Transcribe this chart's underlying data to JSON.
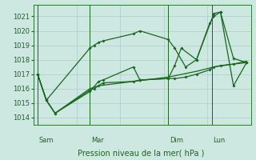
{
  "xlabel": "Pression niveau de la mer( hPa )",
  "background_color": "#cce8e0",
  "grid_color": "#aacccc",
  "line_color": "#1a6620",
  "ylim": [
    1013.5,
    1021.8
  ],
  "yticks": [
    1014,
    1015,
    1016,
    1017,
    1018,
    1019,
    1020,
    1021
  ],
  "day_labels": [
    "Sam",
    "Mar",
    "Dim",
    "Lun"
  ],
  "day_positions": [
    0.02,
    0.26,
    0.62,
    0.82
  ],
  "xmin": 0.0,
  "xmax": 1.0,
  "series1_x": [
    0.02,
    0.06,
    0.26,
    0.28,
    0.3,
    0.32,
    0.46,
    0.49,
    0.62,
    0.65,
    0.7,
    0.75,
    0.81,
    0.83,
    0.86,
    0.92,
    0.98
  ],
  "series1_y": [
    1017.0,
    1015.2,
    1018.8,
    1019.0,
    1019.2,
    1019.3,
    1019.8,
    1020.0,
    1019.4,
    1018.8,
    1017.5,
    1018.0,
    1020.5,
    1021.0,
    1021.3,
    1018.1,
    1017.8
  ],
  "series2_x": [
    0.02,
    0.06,
    0.1,
    0.26,
    0.28,
    0.3,
    0.32,
    0.46,
    0.49,
    0.62,
    0.65,
    0.7,
    0.75,
    0.81,
    0.83,
    0.86,
    0.92,
    0.98
  ],
  "series2_y": [
    1017.0,
    1015.2,
    1014.3,
    1015.9,
    1016.0,
    1016.2,
    1016.4,
    1016.5,
    1016.6,
    1016.7,
    1016.7,
    1016.8,
    1017.0,
    1017.3,
    1017.5,
    1017.6,
    1017.7,
    1017.8
  ],
  "series3_x": [
    0.02,
    0.06,
    0.1,
    0.26,
    0.3,
    0.32,
    0.46,
    0.49,
    0.62,
    0.65,
    0.68,
    0.75,
    0.83,
    0.86,
    0.92,
    0.98
  ],
  "series3_y": [
    1017.0,
    1015.2,
    1014.3,
    1015.8,
    1016.5,
    1016.6,
    1017.5,
    1016.6,
    1016.7,
    1017.6,
    1018.8,
    1018.0,
    1021.2,
    1021.3,
    1016.2,
    1017.8
  ],
  "series4_x": [
    0.02,
    0.06,
    0.1,
    0.26,
    0.3,
    0.46,
    0.62,
    0.75,
    0.83,
    0.92,
    0.98
  ],
  "series4_y": [
    1017.0,
    1015.2,
    1014.3,
    1016.0,
    1016.2,
    1016.5,
    1016.8,
    1017.2,
    1017.5,
    1017.7,
    1017.9
  ]
}
